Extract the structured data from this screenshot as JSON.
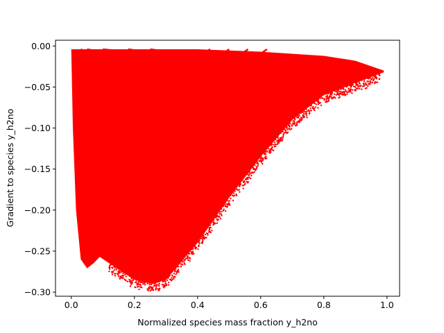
{
  "chart_data": {
    "type": "scatter",
    "title": "",
    "xlabel": "Normalized species mass fraction y_h2no",
    "ylabel": "Gradient to species y_h2no",
    "xlim": [
      -0.05,
      1.04
    ],
    "ylim": [
      -0.305,
      0.007
    ],
    "x_ticks": [
      0.0,
      0.2,
      0.4,
      0.6,
      0.8,
      1.0
    ],
    "x_tick_labels": [
      "0.0",
      "0.2",
      "0.4",
      "0.6",
      "0.8",
      "1.0"
    ],
    "y_ticks": [
      0.0,
      -0.05,
      -0.1,
      -0.15,
      -0.2,
      -0.25,
      -0.3
    ],
    "y_tick_labels": [
      "0.00",
      "−0.05",
      "−0.10",
      "−0.15",
      "−0.20",
      "−0.25",
      "−0.30"
    ],
    "grid": false,
    "legend": "none",
    "marker_color": "#ff0000",
    "series": [
      {
        "region": "main-cloud",
        "upper_boundary": [
          [
            0.0,
            -0.004
          ],
          [
            0.2,
            -0.004
          ],
          [
            0.4,
            -0.004
          ],
          [
            0.6,
            -0.007
          ],
          [
            0.8,
            -0.012
          ],
          [
            0.9,
            -0.018
          ],
          [
            0.99,
            -0.03
          ]
        ],
        "lower_boundary": [
          [
            0.0,
            -0.005
          ],
          [
            0.005,
            -0.1
          ],
          [
            0.015,
            -0.2
          ],
          [
            0.03,
            -0.26
          ],
          [
            0.05,
            -0.271
          ],
          [
            0.07,
            -0.265
          ],
          [
            0.09,
            -0.257
          ],
          [
            0.14,
            -0.27
          ],
          [
            0.2,
            -0.285
          ],
          [
            0.26,
            -0.29
          ],
          [
            0.3,
            -0.285
          ],
          [
            0.4,
            -0.24
          ],
          [
            0.5,
            -0.185
          ],
          [
            0.6,
            -0.135
          ],
          [
            0.7,
            -0.09
          ],
          [
            0.8,
            -0.06
          ],
          [
            0.9,
            -0.045
          ],
          [
            0.99,
            -0.032
          ]
        ]
      },
      {
        "region": "upper-arcs",
        "arcs": [
          [
            [
              0.03,
              -0.004
            ],
            [
              0.1,
              -0.015
            ],
            [
              0.2,
              -0.02
            ],
            [
              0.3,
              -0.012
            ],
            [
              0.33,
              -0.005
            ]
          ],
          [
            [
              0.05,
              -0.004
            ],
            [
              0.17,
              -0.012
            ],
            [
              0.28,
              -0.02
            ],
            [
              0.4,
              -0.012
            ],
            [
              0.44,
              -0.004
            ]
          ],
          [
            [
              0.1,
              -0.004
            ],
            [
              0.25,
              -0.01
            ],
            [
              0.38,
              -0.022
            ],
            [
              0.47,
              -0.012
            ],
            [
              0.5,
              -0.004
            ]
          ],
          [
            [
              0.18,
              -0.004
            ],
            [
              0.33,
              -0.012
            ],
            [
              0.45,
              -0.024
            ],
            [
              0.53,
              -0.012
            ],
            [
              0.56,
              -0.004
            ]
          ],
          [
            [
              0.25,
              -0.004
            ],
            [
              0.4,
              -0.012
            ],
            [
              0.52,
              -0.025
            ],
            [
              0.59,
              -0.012
            ],
            [
              0.62,
              -0.004
            ]
          ]
        ]
      }
    ]
  }
}
